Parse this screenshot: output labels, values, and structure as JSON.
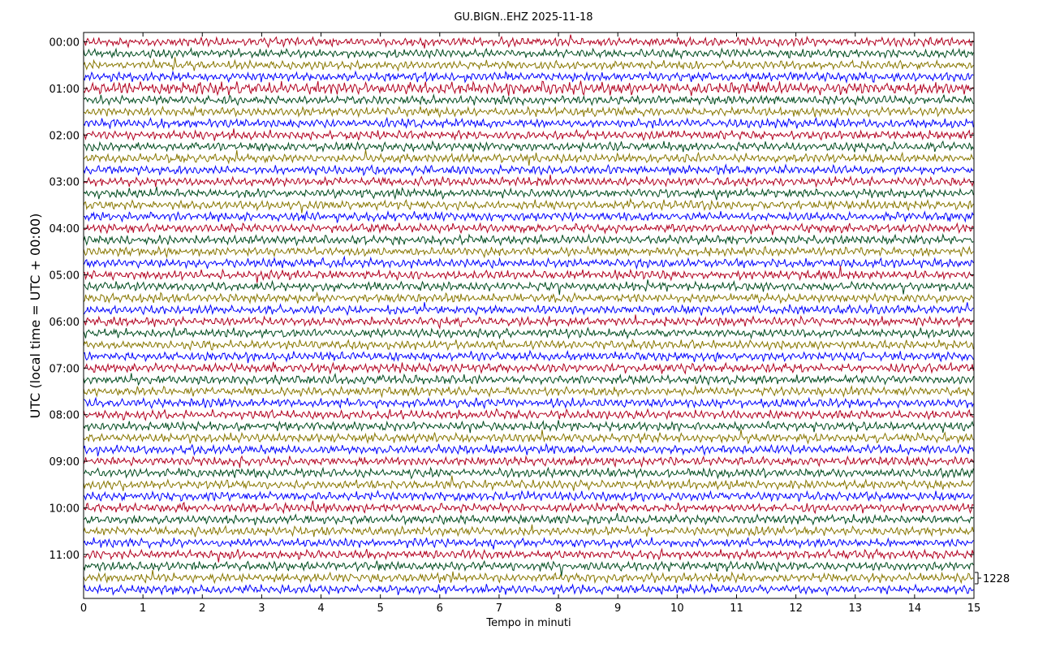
{
  "chart_data": {
    "type": "line",
    "title": "GU.BIGN..EHZ 2025-11-18",
    "xlabel": "Tempo in minuti",
    "ylabel": "UTC (local time = UTC + 00:00)",
    "xlim": [
      0,
      15
    ],
    "x_ticks": [
      "0",
      "1",
      "2",
      "3",
      "4",
      "5",
      "6",
      "7",
      "8",
      "9",
      "10",
      "11",
      "12",
      "13",
      "14",
      "15"
    ],
    "y_ticks": [
      "00:00",
      "01:00",
      "02:00",
      "03:00",
      "04:00",
      "05:00",
      "06:00",
      "07:00",
      "08:00",
      "09:00",
      "10:00",
      "11:00"
    ],
    "trace_count": 48,
    "trace_minutes": 15,
    "colors": [
      "#b2001f",
      "#004b1e",
      "#887700",
      "#0000ff"
    ],
    "scale_label": "1228"
  }
}
